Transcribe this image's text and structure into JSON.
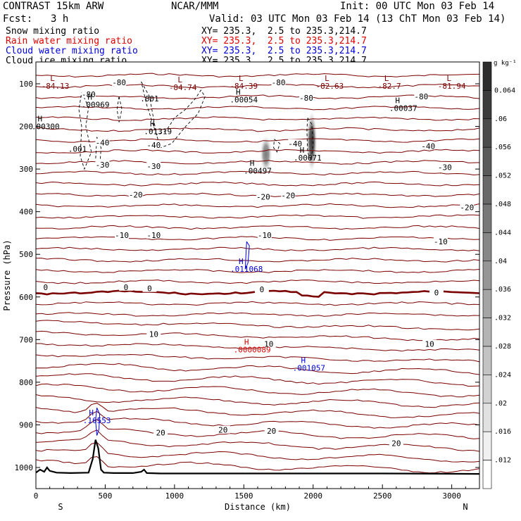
{
  "header": {
    "model": "CONTRAST 15km ARW",
    "org": "NCAR/MMM",
    "init": "Init: 00 UTC Mon 03 Feb 14",
    "fcst_label": "Fcst:",
    "fcst_value": "3 h",
    "valid": "Valid: 03 UTC Mon 03 Feb 14 (13 ChT Mon 03 Feb 14)",
    "fields": [
      {
        "name": "Snow mixing ratio",
        "xy": "XY= 235.3,  2.5 to 235.3,214.7",
        "color": "#000000"
      },
      {
        "name": "Rain water mixing ratio",
        "xy": "XY= 235.3,  2.5 to 235.3,214.7",
        "color": "#e00000"
      },
      {
        "name": "Cloud water mixing ratio",
        "xy": "XY= 235.3,  2.5 to 235.3,214.7",
        "color": "#0000dd"
      },
      {
        "name": "Cloud ice mixing ratio",
        "xy": "XY= 235.3,  2.5 to 235.3,214.7",
        "color": "#000000"
      }
    ]
  },
  "chart_data": {
    "type": "contour",
    "xlabel": "Distance (km)",
    "ylabel": "Pressure (hPa)",
    "xlim": [
      0,
      3200
    ],
    "ylim": [
      1050,
      45
    ],
    "x_ticks": [
      0,
      500,
      1000,
      1500,
      2000,
      2500,
      3000
    ],
    "y_ticks": [
      100,
      200,
      300,
      400,
      500,
      600,
      700,
      800,
      900,
      1000
    ],
    "x_end_labels": {
      "left": "S",
      "right": "N"
    },
    "colorbar": {
      "units": "g kg⁻¹",
      "ticks": [
        "0.064",
        ".06",
        ".056",
        ".052",
        ".048",
        ".044",
        ".04",
        ".036",
        ".032",
        ".028",
        ".024",
        ".02",
        ".016",
        ".012"
      ],
      "tick_values": [
        0.064,
        0.06,
        0.056,
        0.052,
        0.048,
        0.044,
        0.04,
        0.036,
        0.032,
        0.028,
        0.024,
        0.02,
        0.016,
        0.012
      ],
      "range": [
        0.008,
        0.068
      ]
    },
    "temperature_contours_C": [
      -80,
      -70,
      -60,
      -50,
      -40,
      -30,
      -20,
      -10,
      0,
      10,
      20
    ],
    "contour_labels": [
      {
        "text": "-80",
        "x": 600,
        "p": 97
      },
      {
        "text": "-80",
        "x": 1750,
        "p": 97
      },
      {
        "text": "-80",
        "x": 380,
        "p": 125
      },
      {
        "text": "-80",
        "x": 1950,
        "p": 133
      },
      {
        "text": "-80",
        "x": 2780,
        "p": 130
      },
      {
        "text": "-40",
        "x": 480,
        "p": 238
      },
      {
        "text": "-40",
        "x": 850,
        "p": 244
      },
      {
        "text": "-40",
        "x": 1870,
        "p": 240
      },
      {
        "text": "-40",
        "x": 2830,
        "p": 246
      },
      {
        "text": "-30",
        "x": 480,
        "p": 290
      },
      {
        "text": "-30",
        "x": 850,
        "p": 293
      },
      {
        "text": "-30",
        "x": 2950,
        "p": 296
      },
      {
        "text": "-20",
        "x": 720,
        "p": 360
      },
      {
        "text": "-20",
        "x": 1640,
        "p": 365
      },
      {
        "text": "-20",
        "x": 1820,
        "p": 362
      },
      {
        "text": "-20",
        "x": 3110,
        "p": 390
      },
      {
        "text": "-10",
        "x": 620,
        "p": 455
      },
      {
        "text": "-10",
        "x": 850,
        "p": 455
      },
      {
        "text": "-10",
        "x": 1650,
        "p": 455
      },
      {
        "text": "-10",
        "x": 2920,
        "p": 470
      },
      {
        "text": "0",
        "x": 70,
        "p": 577
      },
      {
        "text": "0",
        "x": 650,
        "p": 577
      },
      {
        "text": "0",
        "x": 820,
        "p": 580
      },
      {
        "text": "0",
        "x": 1630,
        "p": 582
      },
      {
        "text": "0",
        "x": 2890,
        "p": 590
      },
      {
        "text": "10",
        "x": 850,
        "p": 687
      },
      {
        "text": "10",
        "x": 1680,
        "p": 710
      },
      {
        "text": "10",
        "x": 2840,
        "p": 710
      },
      {
        "text": "20",
        "x": 900,
        "p": 918
      },
      {
        "text": "20",
        "x": 1350,
        "p": 912
      },
      {
        "text": "20",
        "x": 1700,
        "p": 914
      },
      {
        "text": "20",
        "x": 2600,
        "p": 943
      }
    ],
    "extrema": [
      {
        "mark": "L",
        "value": "-84.13",
        "x": 140,
        "p": 93,
        "color": "#7a0000"
      },
      {
        "mark": "L",
        "value": "-84.74",
        "x": 1060,
        "p": 97,
        "color": "#7a0000"
      },
      {
        "mark": "L",
        "value": "-84.39",
        "x": 1500,
        "p": 93,
        "color": "#7a0000"
      },
      {
        "mark": "L",
        "value": "-82.63",
        "x": 2120,
        "p": 93,
        "color": "#7a0000"
      },
      {
        "mark": "L",
        "value": "-82.7",
        "x": 2550,
        "p": 93,
        "color": "#7a0000"
      },
      {
        "mark": "L",
        "value": "-81.94",
        "x": 3000,
        "p": 93,
        "color": "#7a0000"
      },
      {
        "mark": "H",
        "value": ".00969",
        "x": 430,
        "p": 137,
        "color": "#000000"
      },
      {
        "mark": "H",
        "value": ".00300",
        "x": 70,
        "p": 188,
        "color": "#000000"
      },
      {
        "mark": "H",
        "value": ".00054",
        "x": 1500,
        "p": 126,
        "color": "#000000"
      },
      {
        "mark": "H",
        "value": ".00037",
        "x": 2650,
        "p": 145,
        "color": "#000000"
      },
      {
        "mark": "H",
        "value": ".01319",
        "x": 880,
        "p": 200,
        "color": "#000000"
      },
      {
        "mark": "H",
        "value": ".00497",
        "x": 1600,
        "p": 292,
        "color": "#000000"
      },
      {
        "mark": "H",
        "value": ".00671",
        "x": 1960,
        "p": 262,
        "color": "#000000"
      },
      {
        "mark": "H",
        "value": ".011068",
        "x": 1520,
        "p": 523,
        "color": "#0000dd"
      },
      {
        "mark": "H",
        "value": ".0000089",
        "x": 1560,
        "p": 712,
        "color": "#e00000"
      },
      {
        "mark": "H",
        "value": ".001057",
        "x": 1970,
        "p": 755,
        "color": "#0000dd"
      },
      {
        "mark": "H",
        "value": ".16553",
        "x": 440,
        "p": 878,
        "color": "#0000dd"
      }
    ],
    "dashed_contour_labels": [
      {
        "text": ".001",
        "x": 820,
        "p": 135
      },
      {
        "text": ".001",
        "x": 300,
        "p": 253
      }
    ],
    "terrain_profile": {
      "x": [
        0,
        30,
        60,
        80,
        100,
        150,
        250,
        380,
        410,
        430,
        450,
        470,
        490,
        560,
        700,
        760,
        780,
        800,
        900,
        1500,
        2500,
        3200
      ],
      "p": [
        1012,
        1005,
        1010,
        1000,
        1008,
        1012,
        1013,
        1012,
        980,
        935,
        955,
        1005,
        1012,
        1013,
        1013,
        1010,
        1005,
        1013,
        1014,
        1014,
        1014,
        1015
      ]
    },
    "shaded_cells": [
      {
        "x": 1660,
        "p": 265,
        "intensity": 0.6
      },
      {
        "x": 1990,
        "p": 235,
        "intensity": 0.9
      }
    ]
  }
}
